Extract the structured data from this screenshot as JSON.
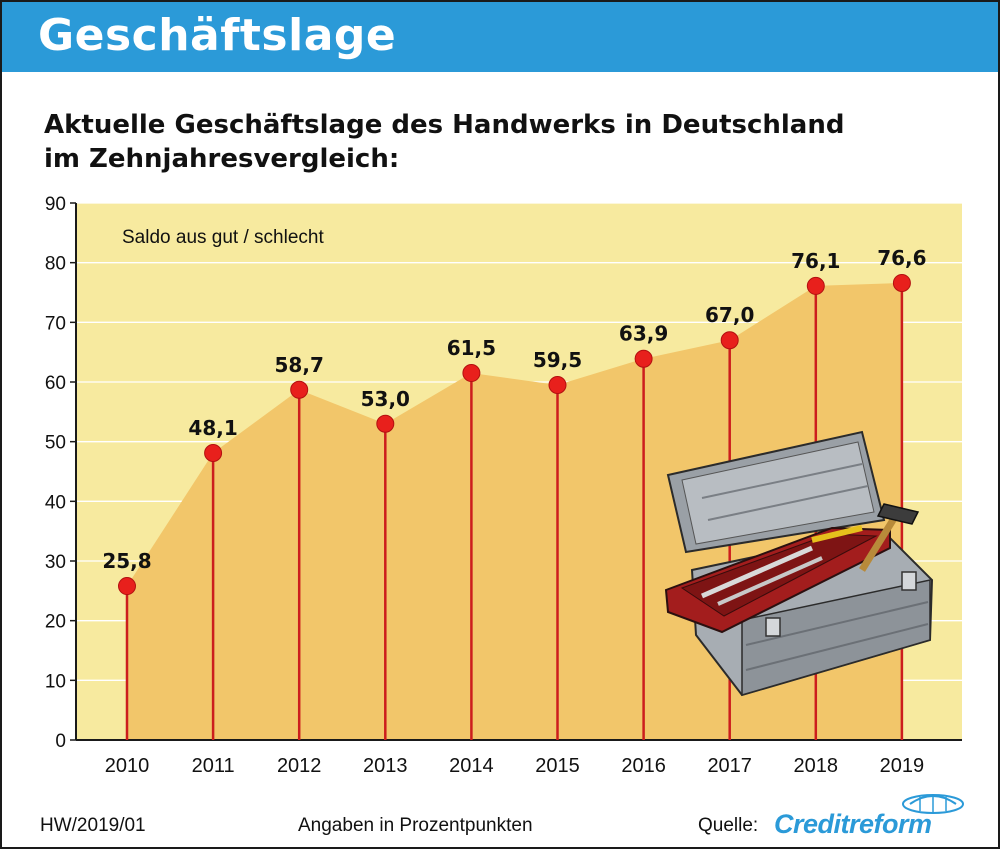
{
  "header": {
    "title": "Geschäftslage",
    "subtitle_line1": "Aktuelle Geschäftslage des Handwerks in Deutschland",
    "subtitle_line2": "im Zehnjahresvergleich:"
  },
  "footer": {
    "code": "HW/2019/01",
    "note": "Angaben in Prozentpunkten",
    "source_label": "Quelle:",
    "source_name": "Creditreform"
  },
  "colors": {
    "banner": "#2b9ad8",
    "plot_background": "#f7ea9f",
    "area_fill": "#f2c66a",
    "stem": "#cc1d1d",
    "marker": "#e8201c",
    "brand": "#2b9ad8"
  },
  "chart_data": {
    "type": "line",
    "title": "Aktuelle Geschäftslage des Handwerks in Deutschland im Zehnjahresvergleich:",
    "annotation": "Saldo aus gut / schlecht",
    "xlabel": "",
    "ylabel": "",
    "categories": [
      "2010",
      "2011",
      "2012",
      "2013",
      "2014",
      "2015",
      "2016",
      "2017",
      "2018",
      "2019"
    ],
    "values": [
      25.8,
      48.1,
      58.7,
      53.0,
      61.5,
      59.5,
      63.9,
      67.0,
      76.1,
      76.6
    ],
    "labels": [
      "25,8",
      "48,1",
      "58,7",
      "53,0",
      "61,5",
      "59,5",
      "63,9",
      "67,0",
      "76,1",
      "76,6"
    ],
    "ylim": [
      0,
      90
    ],
    "yticks": [
      0,
      10,
      20,
      30,
      40,
      50,
      60,
      70,
      80,
      90
    ],
    "grid": true,
    "legend": "none"
  }
}
